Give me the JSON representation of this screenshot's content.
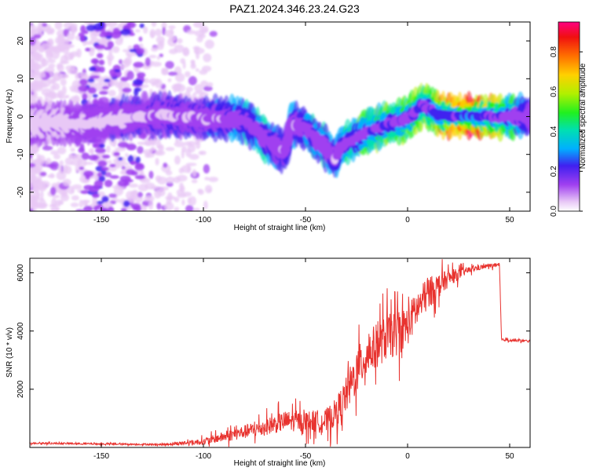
{
  "figure_title": "PAZ1.2024.346.23.24.G23",
  "chart_data": [
    {
      "type": "heatmap",
      "xlabel": "Height of straight line (km)",
      "ylabel": "Frequency (Hz)",
      "xlim": [
        -185,
        60
      ],
      "ylim": [
        -25,
        25
      ],
      "xticks": [
        -150,
        -100,
        -50,
        0,
        50
      ],
      "yticks": [
        -20,
        -10,
        0,
        10,
        20
      ],
      "colorbar": {
        "label": "Normalized spectral amplitude",
        "range": [
          0,
          0.95
        ],
        "ticks": [
          0.0,
          0.2,
          0.4,
          0.6,
          0.8
        ],
        "colormap": [
          "#e8c8f6",
          "#a040f0",
          "#4020f0",
          "#00b0ff",
          "#00e0b0",
          "#20f020",
          "#b0f000",
          "#ffd000",
          "#ff7000",
          "#f01010",
          "#ff0080"
        ]
      },
      "ridge": {
        "x": [
          -185,
          -170,
          -160,
          -150,
          -140,
          -130,
          -120,
          -110,
          -100,
          -90,
          -80,
          -75,
          -70,
          -65,
          -60,
          -57,
          -50,
          -45,
          -40,
          -38,
          -35,
          -33,
          -30,
          -20,
          -10,
          0,
          5,
          8,
          15,
          30,
          45,
          60
        ],
        "freq": [
          -2,
          -1.5,
          -2,
          -1.5,
          -0.5,
          0,
          0.5,
          0,
          -0.5,
          -0.5,
          -1,
          -3,
          -6,
          -8,
          -9,
          -2,
          -3,
          -6,
          -8,
          -10,
          -11,
          -8,
          -7,
          -4,
          -2,
          -0.5,
          2,
          3,
          0.5,
          0,
          0,
          0
        ],
        "amplitude": [
          0.12,
          0.12,
          0.15,
          0.15,
          0.18,
          0.2,
          0.22,
          0.22,
          0.25,
          0.28,
          0.35,
          0.35,
          0.35,
          0.3,
          0.25,
          0.3,
          0.35,
          0.35,
          0.35,
          0.3,
          0.3,
          0.4,
          0.45,
          0.5,
          0.55,
          0.6,
          0.55,
          0.5,
          0.7,
          0.95,
          0.6,
          0.25
        ]
      }
    },
    {
      "type": "line",
      "xlabel": "Height of straight line (km)",
      "ylabel": "SNR (10 * v/v)",
      "xlim": [
        -185,
        60
      ],
      "ylim": [
        0,
        6500
      ],
      "xticks": [
        -150,
        -100,
        -50,
        0,
        50
      ],
      "yticks": [
        2000,
        4000,
        6000
      ],
      "color": "#e8332f",
      "x": [
        -185,
        -150,
        -120,
        -100,
        -85,
        -70,
        -60,
        -50,
        -40,
        -35,
        -30,
        -25,
        -20,
        -15,
        -10,
        -5,
        0,
        5,
        10,
        20,
        30,
        40,
        45,
        46,
        60
      ],
      "y": [
        150,
        120,
        100,
        200,
        450,
        700,
        900,
        900,
        900,
        1200,
        1800,
        2600,
        3200,
        3500,
        3800,
        3900,
        4200,
        4800,
        5300,
        5800,
        6100,
        6250,
        6250,
        3700,
        3650
      ],
      "noise": [
        40,
        40,
        40,
        150,
        300,
        400,
        500,
        500,
        600,
        700,
        900,
        1100,
        1100,
        1100,
        1100,
        1100,
        1000,
        900,
        800,
        400,
        150,
        100,
        100,
        60,
        60
      ]
    }
  ]
}
